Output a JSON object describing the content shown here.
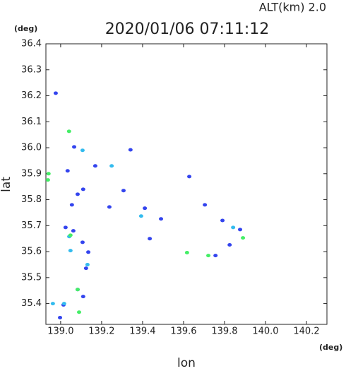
{
  "chart_data": {
    "type": "scatter",
    "title": "2020/01/06 07:11:12",
    "subtitle": "ALT(km) 2.0",
    "x_label": "lon",
    "y_label": "lat",
    "x_unit": "(deg)",
    "y_unit": "(deg)",
    "xlim": [
      138.928,
      140.3
    ],
    "ylim": [
      35.32,
      36.4
    ],
    "xticks": [
      {
        "value": 139.0,
        "label": "139.0"
      },
      139.2,
      139.4,
      139.6,
      139.8,
      {
        "value": 140.0,
        "label": "140.0"
      },
      140.2
    ],
    "yticks": [
      35.4,
      35.5,
      35.6,
      35.7,
      35.8,
      35.9,
      {
        "value": 36.0,
        "label": "36.0"
      },
      36.1,
      36.2,
      36.3,
      36.4
    ],
    "series": [
      {
        "color": "#3344ee",
        "x": [
          138.976,
          139.066,
          139.034,
          139.083,
          139.055,
          139.024,
          139.062,
          139.107,
          139.135,
          139.124,
          139.083,
          139.11,
          139.014,
          138.997,
          139.11,
          139.238,
          139.307,
          139.341,
          139.411,
          139.435,
          139.49,
          139.628,
          139.704,
          139.756,
          139.79,
          139.825,
          139.876,
          139.169
        ],
        "values": [
          36.21,
          36.003,
          35.911,
          35.821,
          35.78,
          35.693,
          35.68,
          35.636,
          35.598,
          35.536,
          35.454,
          35.427,
          35.395,
          35.346,
          35.84,
          35.772,
          35.835,
          35.992,
          35.767,
          35.65,
          35.726,
          35.889,
          35.78,
          35.585,
          35.72,
          35.626,
          35.685,
          35.93
        ]
      },
      {
        "color": "#33bbee",
        "x": [
          139.249,
          139.107,
          139.042,
          139.048,
          139.017,
          138.962,
          139.393,
          139.842,
          139.131
        ],
        "values": [
          35.93,
          35.99,
          35.658,
          35.604,
          35.4,
          35.4,
          35.737,
          35.693,
          35.55
        ]
      },
      {
        "color": "#44ee66",
        "x": [
          139.041,
          138.938,
          138.941,
          139.048,
          139.09,
          139.083,
          139.617,
          139.721,
          139.89
        ],
        "values": [
          36.063,
          35.876,
          35.9,
          35.663,
          35.367,
          35.454,
          35.596,
          35.585,
          35.653
        ]
      }
    ]
  }
}
